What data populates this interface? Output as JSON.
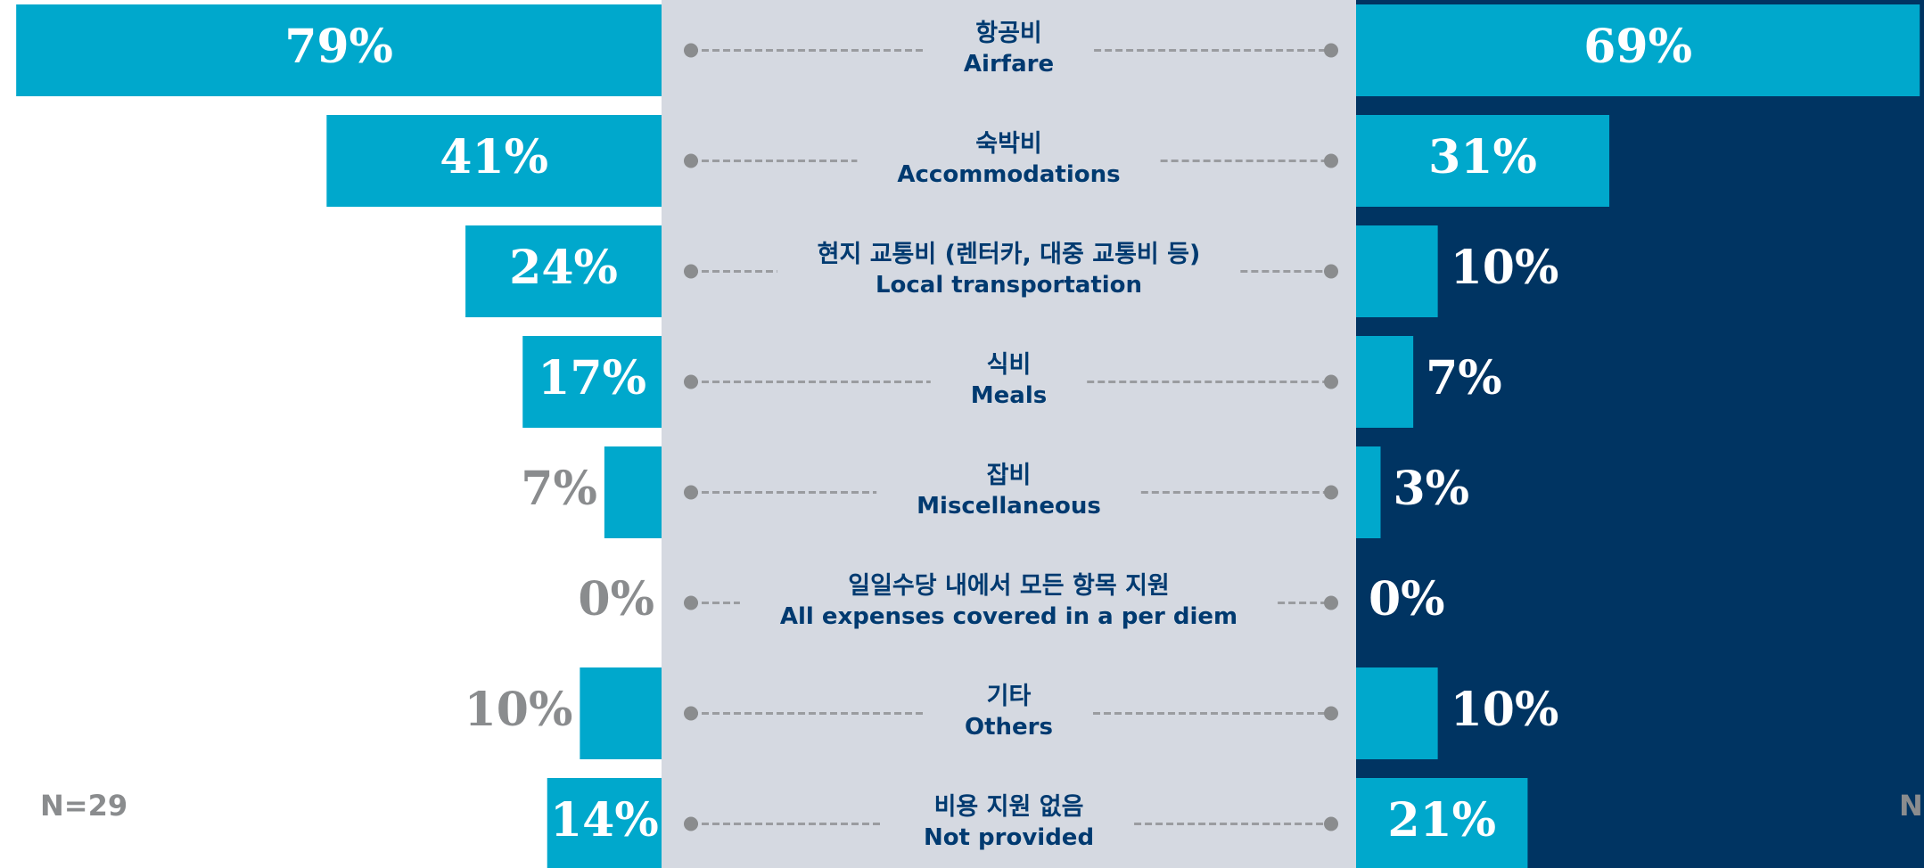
{
  "chart_data": {
    "type": "butterfly-bar",
    "categories": [
      {
        "ko": "항공비",
        "en": "Airfare"
      },
      {
        "ko": "숙박비",
        "en": "Accommodations"
      },
      {
        "ko": "현지 교통비 (렌터카, 대중 교통비 등)",
        "en": "Local transportation"
      },
      {
        "ko": "식비",
        "en": "Meals"
      },
      {
        "ko": "잡비",
        "en": "Miscellaneous"
      },
      {
        "ko": "일일수당 내에서 모든 항목 지원",
        "en": "All expenses covered in a per diem"
      },
      {
        "ko": "기타",
        "en": "Others"
      },
      {
        "ko": "비용 지원 없음",
        "en": "Not provided"
      }
    ],
    "series": [
      {
        "color": "#00a8cc",
        "values": [
          79,
          41,
          24,
          17,
          7,
          0,
          10,
          14
        ],
        "value_labels": [
          "79%",
          "41%",
          "24%",
          "17%",
          "7%",
          "0%",
          "10%",
          "14%"
        ]
      },
      {
        "color": "#00a8cc",
        "values": [
          69,
          31,
          10,
          7,
          3,
          0,
          10,
          21
        ],
        "value_labels": [
          "69%",
          "31%",
          "10%",
          "7%",
          "3%",
          "0%",
          "10%",
          "21%"
        ]
      }
    ],
    "xlim": [
      0,
      80
    ],
    "annotations": [
      "N=29",
      "N"
    ]
  }
}
